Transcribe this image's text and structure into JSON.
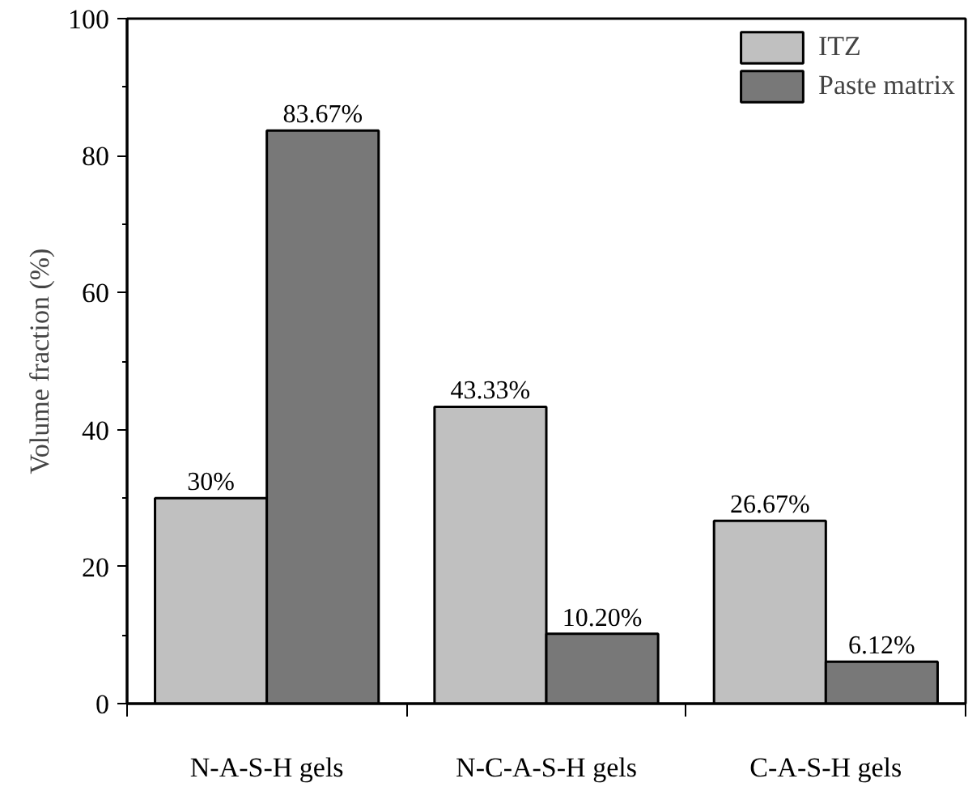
{
  "chart_data": {
    "type": "bar",
    "ylabel": "Volume fraction (%)",
    "categories": [
      "N-A-S-H gels",
      "N-C-A-S-H gels",
      "C-A-S-H gels"
    ],
    "series": [
      {
        "name": "ITZ",
        "color": "#c0c0c0",
        "values": [
          30,
          43.33,
          26.67
        ],
        "value_labels": [
          "30%",
          "43.33%",
          "26.67%"
        ]
      },
      {
        "name": "Paste matrix",
        "color": "#787878",
        "values": [
          83.67,
          10.2,
          6.12
        ],
        "value_labels": [
          "83.67%",
          "10.20%",
          "6.12%"
        ]
      }
    ],
    "ylim": [
      0,
      100
    ],
    "yticks": [
      0,
      20,
      40,
      60,
      80,
      100
    ],
    "grid": false,
    "legend": "top right"
  }
}
